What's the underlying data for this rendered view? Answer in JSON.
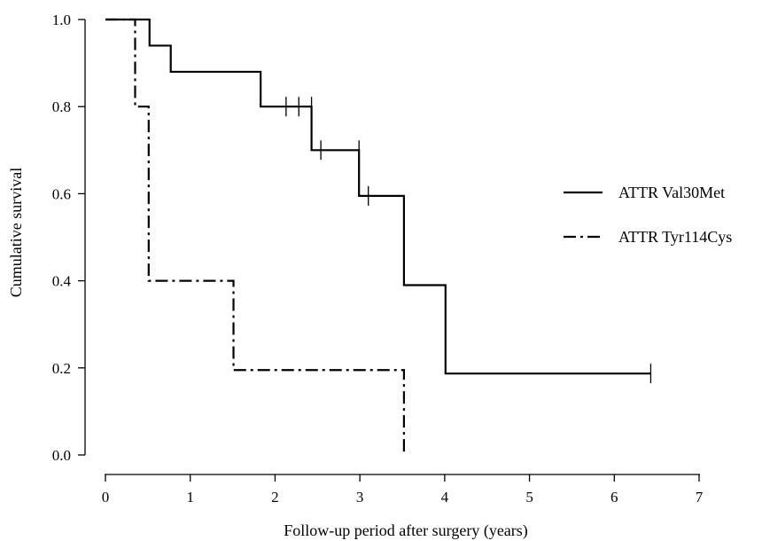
{
  "chart_data": {
    "type": "line",
    "step": true,
    "title": "",
    "xlabel": "Follow-up period after surgery (years)",
    "ylabel": "Cumulative survival",
    "xlim": [
      0,
      7
    ],
    "ylim": [
      0,
      1
    ],
    "xticks": [
      0,
      1,
      2,
      3,
      4,
      5,
      6,
      7
    ],
    "yticks": [
      0.0,
      0.2,
      0.4,
      0.6,
      0.8,
      1.0
    ],
    "xtick_labels": [
      "0",
      "1",
      "2",
      "3",
      "4",
      "5",
      "6",
      "7"
    ],
    "ytick_labels": [
      "0.0",
      "0.2",
      "0.4",
      "0.6",
      "0.8",
      "1.0"
    ],
    "grid": false,
    "legend_position": "right",
    "series": [
      {
        "name": "ATTR Val30Met",
        "line_style": "solid",
        "x": [
          0,
          0.52,
          0.77,
          1.83,
          2.43,
          2.99,
          3.52,
          4.01,
          6.43
        ],
        "y": [
          1.0,
          0.94,
          0.88,
          0.8,
          0.7,
          0.595,
          0.39,
          0.187,
          0.187
        ],
        "censored": [
          {
            "x": 2.13,
            "y": 0.8
          },
          {
            "x": 2.28,
            "y": 0.8
          },
          {
            "x": 2.43,
            "y": 0.8
          },
          {
            "x": 2.54,
            "y": 0.7
          },
          {
            "x": 2.99,
            "y": 0.7
          },
          {
            "x": 3.1,
            "y": 0.595
          },
          {
            "x": 6.43,
            "y": 0.187
          }
        ]
      },
      {
        "name": "ATTR Tyr114Cys",
        "line_style": "dash-dot",
        "x": [
          0,
          0.35,
          0.51,
          1.51,
          3.52
        ],
        "y": [
          1.0,
          0.8,
          0.4,
          0.195,
          0.0
        ],
        "censored": []
      }
    ]
  }
}
